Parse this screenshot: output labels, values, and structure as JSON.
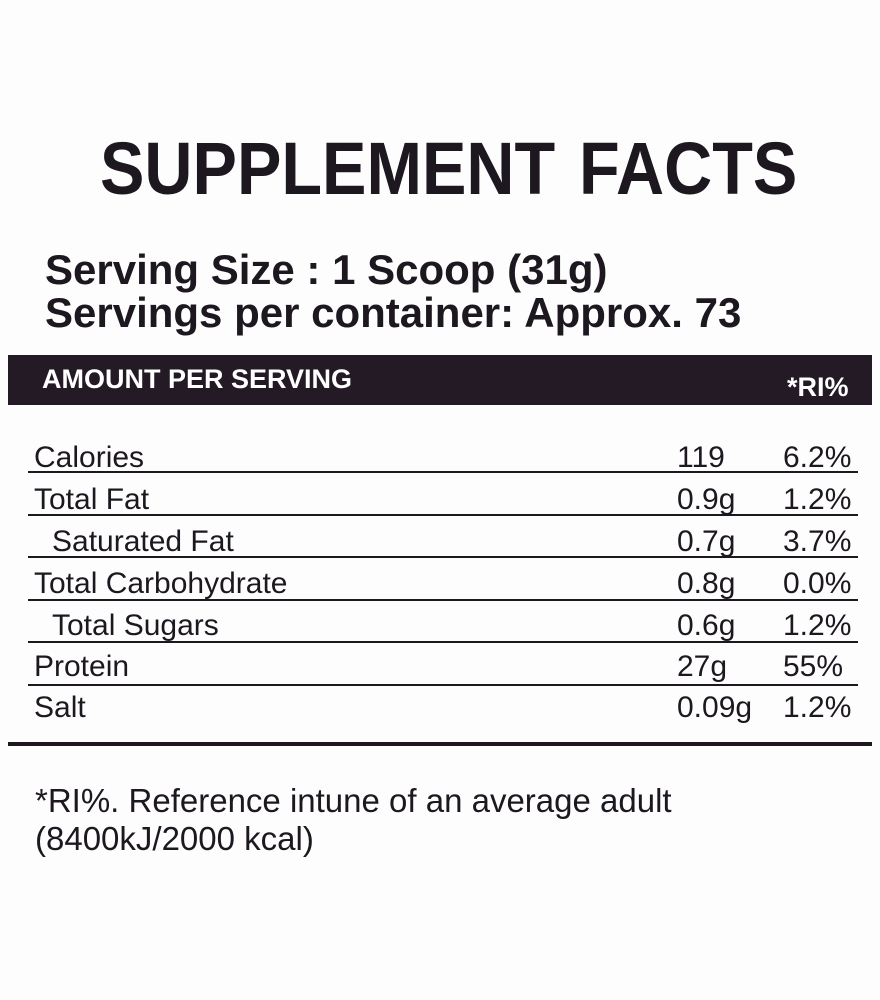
{
  "title": "SUPPLEMENT FACTS",
  "serving": {
    "size": "Serving Size : 1 Scoop (31g)",
    "per_container": "Servings per container: Approx. 73"
  },
  "header": {
    "amount_label": "AMOUNT PER SERVING",
    "ri_label": "*RI%"
  },
  "rows": [
    {
      "name": "Calories",
      "amount": "119",
      "ri": "6.2%"
    },
    {
      "name": "Total Fat",
      "amount": "0.9g",
      "ri": "1.2%"
    },
    {
      "name": "Saturated Fat",
      "amount": "0.7g",
      "ri": "3.7%"
    },
    {
      "name": "Total Carbohydrate",
      "amount": "0.8g",
      "ri": "0.0%"
    },
    {
      "name": "Total Sugars",
      "amount": "0.6g",
      "ri": "1.2%"
    },
    {
      "name": "Protein",
      "amount": "27g",
      "ri": "55%"
    },
    {
      "name": "Salt",
      "amount": "0.09g",
      "ri": "1.2%"
    }
  ],
  "footnote": {
    "line1": "*RI%. Reference intune of an average adult",
    "line2": "(8400kJ/2000 kcal)"
  },
  "colors": {
    "ink": "#1d1720",
    "band": "#231a26",
    "band_text": "#ffffff",
    "background": "#fdfdfd"
  }
}
